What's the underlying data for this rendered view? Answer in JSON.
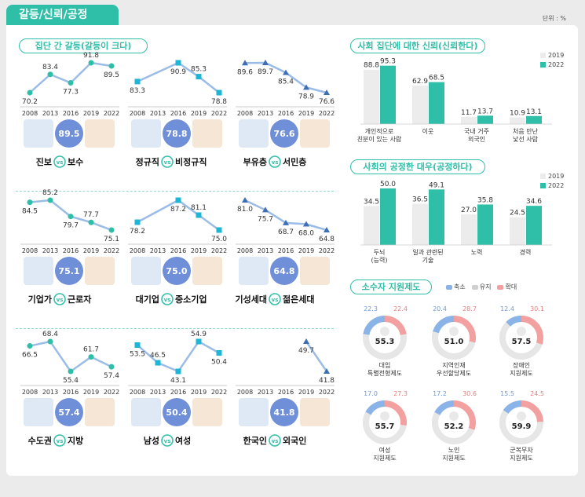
{
  "page": {
    "title": "갈등/신뢰/공정",
    "unit": "단위 : %"
  },
  "colors": {
    "teal": "#2fbfa8",
    "lightgray": "#ececec",
    "blue": "#8ab3e8",
    "pink": "#f2a0a0",
    "line": "#9bbce6",
    "marker_line": "#2fbfa8",
    "marker_tri": "#3d6fb6"
  },
  "sections": {
    "conflict": "집단 간 갈등(갈등이 크다)",
    "trust": "사회 집단에 대한 신뢰(신뢰한다)",
    "fair": "사회의 공정한 대우(공정하다)",
    "minority": "소수자 지원제도"
  },
  "years": [
    "2008",
    "2013",
    "2016",
    "2019",
    "2022"
  ],
  "conflicts": [
    {
      "values": [
        70.2,
        83.4,
        77.3,
        91.8,
        89.5
      ],
      "marker": "circle",
      "center": "89.5",
      "left": "진보",
      "right": "보수",
      "left_icon": "politician-icon",
      "right_icon": "politician-icon"
    },
    {
      "values": [
        83.3,
        null,
        90.9,
        85.3,
        78.8
      ],
      "marker": "square",
      "center": "78.8",
      "left": "정규직",
      "right": "비정규직",
      "left_icon": "office-worker-icon",
      "right_icon": "temp-worker-icon"
    },
    {
      "values": [
        89.6,
        89.7,
        85.4,
        78.9,
        76.6
      ],
      "marker": "triangle",
      "center": "76.6",
      "left": "부유층",
      "right": "서민층",
      "left_icon": "money-stack-icon",
      "right_icon": "coins-icon"
    },
    {
      "values": [
        84.5,
        85.2,
        79.7,
        77.7,
        75.1
      ],
      "marker": "circle",
      "center": "75.1",
      "left": "기업가",
      "right": "근로자",
      "left_icon": "businessman-icon",
      "right_icon": "worker-icon"
    },
    {
      "values": [
        78.2,
        null,
        87.2,
        81.1,
        75.0
      ],
      "marker": "square",
      "center": "75.0",
      "left": "대기업",
      "right": "중소기업",
      "left_icon": "large-building-icon",
      "right_icon": "small-building-icon"
    },
    {
      "values": [
        81.0,
        75.7,
        68.7,
        68.0,
        64.8
      ],
      "marker": "triangle",
      "center": "64.8",
      "left": "기성세대",
      "right": "젊은세대",
      "left_icon": "elderly-couple-icon",
      "right_icon": "young-couple-icon"
    },
    {
      "values": [
        66.5,
        68.4,
        55.4,
        61.7,
        57.4
      ],
      "marker": "circle",
      "center": "57.4",
      "left": "수도권",
      "right": "지방",
      "left_icon": "korea-map-icon",
      "right_icon": "korea-map-icon"
    },
    {
      "values": [
        53.5,
        46.5,
        43.1,
        54.9,
        50.4
      ],
      "marker": "square",
      "center": "50.4",
      "left": "남성",
      "right": "여성",
      "left_icon": "male-icon",
      "right_icon": "female-icon"
    },
    {
      "values": [
        null,
        null,
        null,
        49.7,
        41.8
      ],
      "marker": "triangle",
      "center": "41.8",
      "left": "한국인",
      "right": "외국인",
      "left_icon": "korean-flag-icon",
      "right_icon": "airplane-icon"
    }
  ],
  "vs": "vs",
  "legend": {
    "y1": "2019",
    "y2": "2022"
  },
  "chart_data": [
    {
      "type": "line",
      "title": "집단 간 갈등(갈등이 크다)",
      "x": [
        "2008",
        "2013",
        "2016",
        "2019",
        "2022"
      ],
      "series": [
        {
          "name": "진보 vs 보수",
          "values": [
            70.2,
            83.4,
            77.3,
            91.8,
            89.5
          ]
        },
        {
          "name": "정규직 vs 비정규직",
          "values": [
            83.3,
            null,
            90.9,
            85.3,
            78.8
          ]
        },
        {
          "name": "부유층 vs 서민층",
          "values": [
            89.6,
            89.7,
            85.4,
            78.9,
            76.6
          ]
        },
        {
          "name": "기업가 vs 근로자",
          "values": [
            84.5,
            85.2,
            79.7,
            77.7,
            75.1
          ]
        },
        {
          "name": "대기업 vs 중소기업",
          "values": [
            78.2,
            null,
            87.2,
            81.1,
            75.0
          ]
        },
        {
          "name": "기성세대 vs 젊은세대",
          "values": [
            81.0,
            75.7,
            68.7,
            68.0,
            64.8
          ]
        },
        {
          "name": "수도권 vs 지방",
          "values": [
            66.5,
            68.4,
            55.4,
            61.7,
            57.4
          ]
        },
        {
          "name": "남성 vs 여성",
          "values": [
            53.5,
            46.5,
            43.1,
            54.9,
            50.4
          ]
        },
        {
          "name": "한국인 vs 외국인",
          "values": [
            null,
            null,
            null,
            49.7,
            41.8
          ]
        }
      ]
    },
    {
      "type": "bar",
      "title": "사회 집단에 대한 신뢰(신뢰한다)",
      "categories": [
        [
          "개인적으로",
          "친분이 있는 사람"
        ],
        [
          "이웃"
        ],
        [
          "국내 거주",
          "외국인"
        ],
        [
          "처음 만난",
          "낯선 사람"
        ]
      ],
      "series": [
        {
          "name": "2019",
          "values": [
            88.8,
            62.9,
            11.7,
            10.9
          ]
        },
        {
          "name": "2022",
          "values": [
            95.3,
            68.5,
            13.7,
            13.1
          ]
        }
      ],
      "ylim": [
        0,
        100
      ]
    },
    {
      "type": "bar",
      "title": "사회의 공정한 대우(공정하다)",
      "categories": [
        [
          "두뇌",
          "(능력)"
        ],
        [
          "일과 관련된",
          "기술"
        ],
        [
          "노력"
        ],
        [
          "경력"
        ]
      ],
      "series": [
        {
          "name": "2019",
          "values": [
            34.5,
            36.5,
            27.0,
            24.5
          ]
        },
        {
          "name": "2022",
          "values": [
            50.0,
            49.1,
            35.8,
            34.6
          ]
        }
      ],
      "ylim": [
        0,
        60
      ]
    },
    {
      "type": "pie",
      "title": "소수자 지원제도",
      "legend": [
        "축소",
        "유지",
        "확대"
      ],
      "items": [
        {
          "name": [
            "대입",
            "특별전형제도"
          ],
          "values": [
            22.3,
            55.3,
            22.4
          ],
          "icon": "pencil-icon"
        },
        {
          "name": [
            "지역인재",
            "우선할당제도"
          ],
          "values": [
            20.4,
            51.0,
            28.7
          ],
          "icon": "location-pin-icon"
        },
        {
          "name": [
            "장애인",
            "지원제도"
          ],
          "values": [
            12.4,
            57.5,
            30.1
          ],
          "icon": "wheelchair-icon"
        },
        {
          "name": [
            "여성",
            "지원제도"
          ],
          "values": [
            17.0,
            55.7,
            27.3
          ],
          "icon": "woman-icon"
        },
        {
          "name": [
            "노인",
            "지원제도"
          ],
          "values": [
            17.2,
            52.2,
            30.6
          ],
          "icon": "elderly-cane-icon"
        },
        {
          "name": [
            "군복무자",
            "지원제도"
          ],
          "values": [
            15.5,
            59.9,
            24.5
          ],
          "icon": "military-cap-icon"
        }
      ]
    }
  ]
}
